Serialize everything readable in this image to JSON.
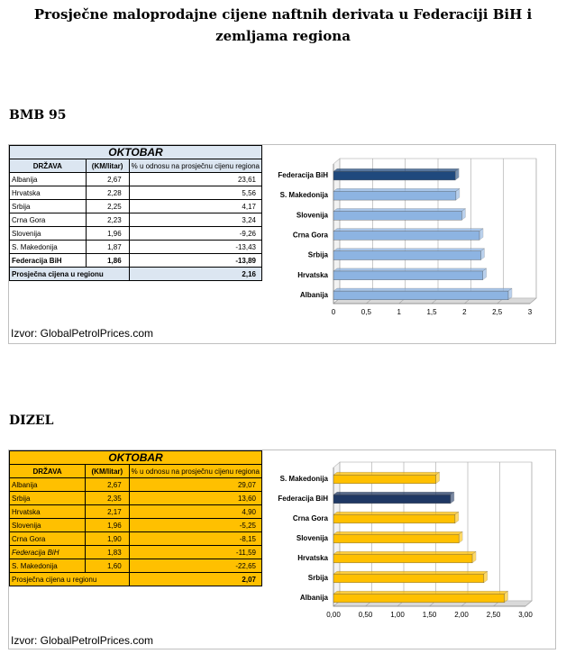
{
  "title_line1": "Prosječne maloprodajne cijene naftnih derivata u Federaciji BiH i",
  "title_line2": "zemljama regiona",
  "sections": [
    {
      "heading": "BMB 95",
      "month": "OKTOBAR",
      "col_country": "DRŽAVA",
      "col_price": "(KM/litar)",
      "col_pct": "% u odnosu na prosječnu cijenu regiona",
      "rows": [
        {
          "country": "Albanija",
          "price": "2,67",
          "pct": "23,61"
        },
        {
          "country": "Hrvatska",
          "price": "2,28",
          "pct": "5,56"
        },
        {
          "country": "Srbija",
          "price": "2,25",
          "pct": "4,17"
        },
        {
          "country": "Crna Gora",
          "price": "2,23",
          "pct": "3,24"
        },
        {
          "country": "Slovenija",
          "price": "1,96",
          "pct": "-9,26"
        },
        {
          "country": "S. Makedonija",
          "price": "1,87",
          "pct": "-13,43"
        },
        {
          "country": "Federacija BiH",
          "price": "1,86",
          "pct": "-13,89",
          "highlight": true
        }
      ],
      "avg_label": "Prosječna cijena u regionu",
      "avg_value": "2,16",
      "source": "Izvor: GlobalPetrolPrices.com",
      "colors": {
        "header": "#dce6f1",
        "row": "#ffffff",
        "bar": "#8db4e2",
        "bar_hi": "#1f497d"
      }
    },
    {
      "heading": "DIZEL",
      "month": "OKTOBAR",
      "col_country": "DRŽAVA",
      "col_price": "(KM/litar)",
      "col_pct": "% u odnosu na prosječnu cijenu regiona",
      "rows": [
        {
          "country": "Albanija",
          "price": "2,67",
          "pct": "29,07"
        },
        {
          "country": "Srbija",
          "price": "2,35",
          "pct": "13,60"
        },
        {
          "country": "Hrvatska",
          "price": "2,17",
          "pct": "4,90"
        },
        {
          "country": "Slovenija",
          "price": "1,96",
          "pct": "-5,25"
        },
        {
          "country": "Crna Gora",
          "price": "1,90",
          "pct": "-8,15"
        },
        {
          "country": "Federacija BiH",
          "price": "1,83",
          "pct": "-11,59",
          "highlight": true
        },
        {
          "country": "S. Makedonija",
          "price": "1,60",
          "pct": "-22,65"
        }
      ],
      "avg_label": "Prosječna cijena u regionu",
      "avg_value": "2,07",
      "source": "Izvor: GlobalPetrolPrices.com",
      "colors": {
        "header": "#ffc000",
        "row": "#ffc000",
        "bar": "#ffc000",
        "bar_hi": "#1f3864"
      }
    }
  ],
  "chart_data": [
    {
      "type": "bar",
      "orientation": "horizontal",
      "categories": [
        "Federacija BiH",
        "S. Makedonija",
        "Slovenija",
        "Crna Gora",
        "Srbija",
        "Hrvatska",
        "Albanija"
      ],
      "values": [
        1.86,
        1.87,
        1.96,
        2.23,
        2.25,
        2.28,
        2.67
      ],
      "highlight": "Federacija BiH",
      "xlim": [
        0,
        3
      ],
      "ticks": [
        "0",
        "0,5",
        "1",
        "1,5",
        "2",
        "2,5",
        "3"
      ],
      "grid": true
    },
    {
      "type": "bar",
      "orientation": "horizontal",
      "categories": [
        "S. Makedonija",
        "Federacija BiH",
        "Crna Gora",
        "Slovenija",
        "Hrvatska",
        "Srbija",
        "Albanija"
      ],
      "values": [
        1.6,
        1.83,
        1.9,
        1.96,
        2.17,
        2.35,
        2.67
      ],
      "highlight": "Federacija BiH",
      "xlim": [
        0,
        3
      ],
      "ticks": [
        "0,00",
        "0,50",
        "1,00",
        "1,50",
        "2,00",
        "2,50",
        "3,00"
      ],
      "grid": true
    }
  ]
}
